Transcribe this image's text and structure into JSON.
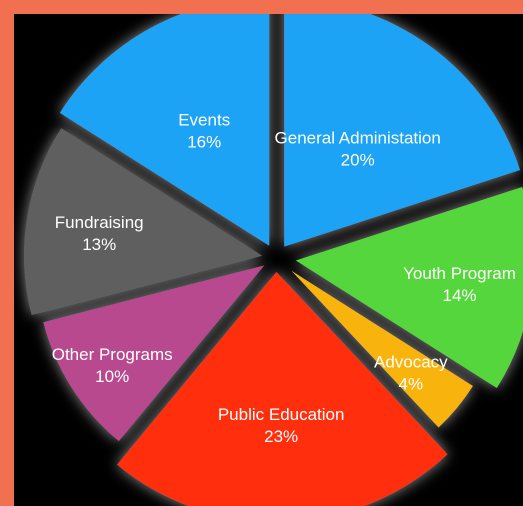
{
  "chart_data": {
    "type": "pie",
    "title": "",
    "legend": "none",
    "slices": [
      {
        "label": "General Administation",
        "value": 20,
        "value_label": "20%",
        "color": "#1aa3f5"
      },
      {
        "label": "Youth Program",
        "value": 14,
        "value_label": "14%",
        "color": "#55d63c"
      },
      {
        "label": "Advocacy",
        "value": 4,
        "value_label": "4%",
        "color": "#f8b30d"
      },
      {
        "label": "Public Education",
        "value": 23,
        "value_label": "23%",
        "color": "#ff2d0a"
      },
      {
        "label": "Other Programs",
        "value": 10,
        "value_label": "10%",
        "color": "#b84a8e"
      },
      {
        "label": "Fundraising",
        "value": 13,
        "value_label": "13%",
        "color": "#5e5e5e"
      },
      {
        "label": "Events",
        "value": 16,
        "value_label": "16%",
        "color": "#1aa3f5"
      }
    ]
  },
  "colors": {
    "page_border": "#f07050",
    "chart_background": "#000000",
    "label_text": "#ffffff"
  }
}
